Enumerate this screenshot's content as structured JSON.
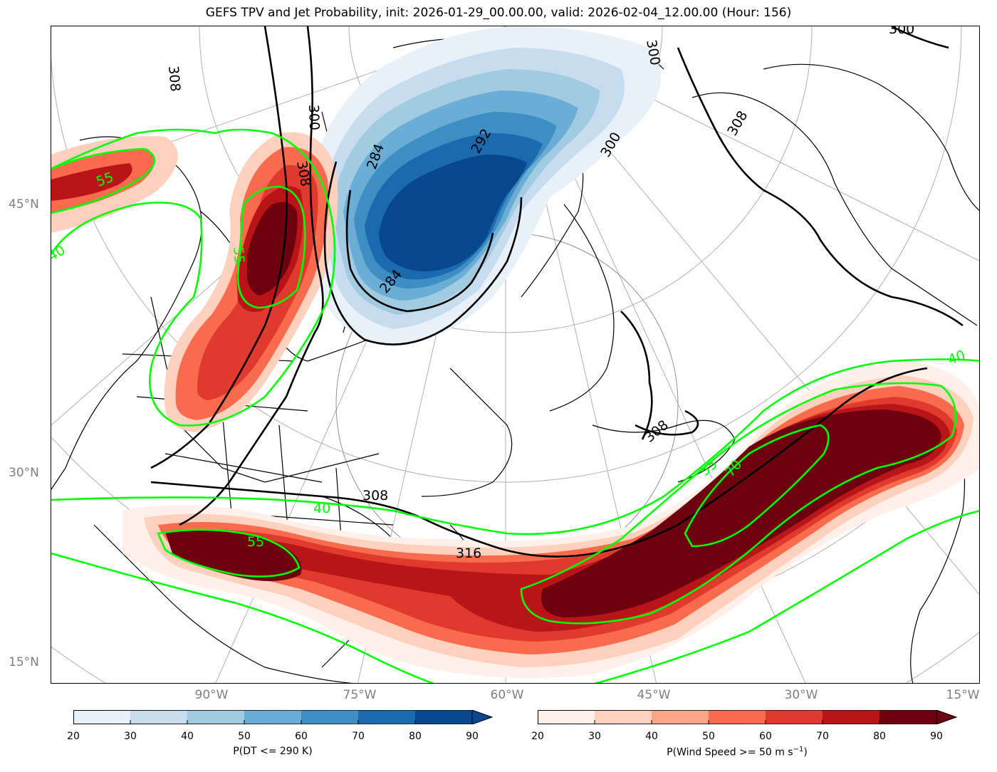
{
  "title": "GEFS TPV and Jet Probability, init: 2026-01-29_00.00.00, valid: 2026-02-04_12.00.00 (Hour: 156)",
  "lat_labels": [
    "45°N",
    "30°N",
    "15°N"
  ],
  "lon_labels": [
    "90°W",
    "75°W",
    "60°W",
    "45°W",
    "30°W",
    "15°W"
  ],
  "contour_labels": {
    "theta": [
      "300",
      "300",
      "300",
      "300",
      "308",
      "308",
      "308",
      "308",
      "308",
      "316",
      "284",
      "284",
      "292"
    ],
    "wind": [
      "55",
      "40",
      "55",
      "55",
      "40",
      "55",
      "70",
      "40"
    ]
  },
  "colorbar_dt": {
    "label": "P(DT <= 290 K)",
    "ticks": [
      "20",
      "30",
      "40",
      "50",
      "60",
      "70",
      "80",
      "90"
    ],
    "colors": [
      "#e8f1fa",
      "#c8dcef",
      "#a2cbe2",
      "#6aadd5",
      "#3e8ec4",
      "#1b69af",
      "#08468d"
    ]
  },
  "colorbar_wind": {
    "label": "P(Wind Speed >= 50 m s",
    "label_sup": "−1",
    "label_end": ")",
    "ticks": [
      "20",
      "30",
      "40",
      "50",
      "60",
      "70",
      "80",
      "90"
    ],
    "colors": [
      "#fff0ea",
      "#fdd1be",
      "#fca689",
      "#f86b4d",
      "#e03a2e",
      "#b91519",
      "#6d010e"
    ]
  }
}
